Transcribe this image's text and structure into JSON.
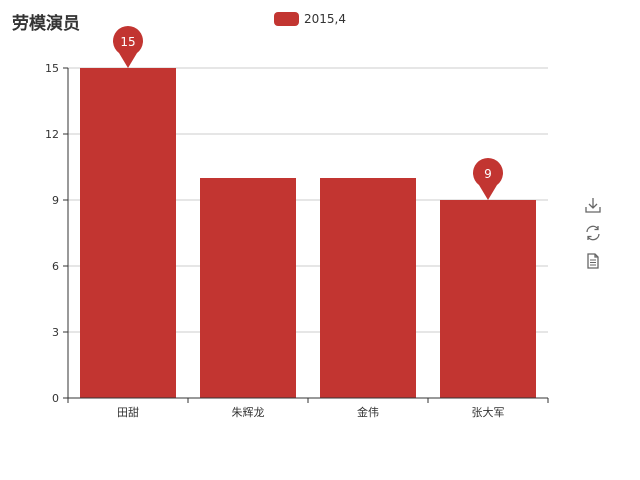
{
  "title": "劳模演员",
  "legend": {
    "label": "2015,4",
    "color": "#c23531"
  },
  "toolbox": {
    "download": "download-icon",
    "restore": "refresh-icon",
    "data_view": "document-icon"
  },
  "chart_data": {
    "type": "bar",
    "categories": [
      "田甜",
      "朱辉龙",
      "金伟",
      "张大军"
    ],
    "series": [
      {
        "name": "2015,4",
        "values": [
          15,
          10,
          10,
          9
        ],
        "color": "#c23531"
      }
    ],
    "ylim": [
      0,
      15
    ],
    "yticks": [
      0,
      3,
      6,
      9,
      12,
      15
    ],
    "grid": true,
    "markers": [
      {
        "category": "田甜",
        "value": 15
      },
      {
        "category": "张大军",
        "value": 9
      }
    ]
  }
}
